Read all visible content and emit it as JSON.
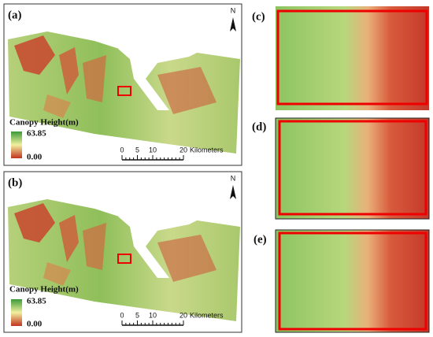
{
  "panels": [
    {
      "label": "(a)",
      "north": "N",
      "legend": {
        "title": "Canopy Height(m)",
        "max": "63.85",
        "min": "0.00"
      },
      "scale_bar": {
        "ticks": [
          0,
          5,
          10,
          20
        ],
        "unit": "Kilometers"
      }
    },
    {
      "label": "(b)",
      "north": "N",
      "legend": {
        "title": "Canopy Height(m)",
        "max": "63.85",
        "min": "0.00"
      },
      "scale_bar": {
        "ticks": [
          0,
          5,
          10,
          20
        ],
        "unit": "Kilometers"
      }
    }
  ],
  "insets": [
    {
      "label": "(c)"
    },
    {
      "label": "(d)"
    },
    {
      "label": "(e)"
    }
  ]
}
